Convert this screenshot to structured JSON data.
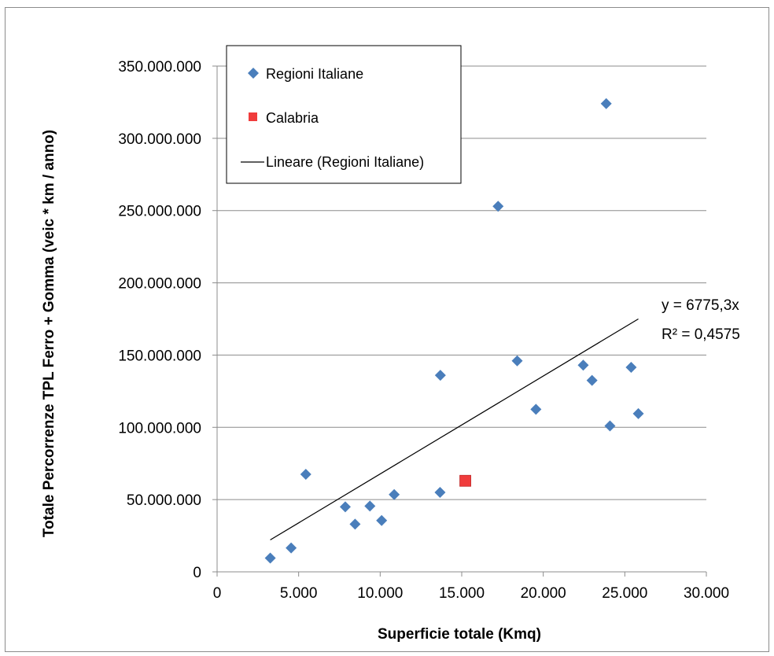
{
  "chart_data": {
    "type": "scatter",
    "title": "",
    "xlabel": "Superficie totale (Kmq)",
    "ylabel": "Totale Percorrenze TPL Ferro + Gomma  (veic * km / anno)",
    "xlim": [
      0,
      30000
    ],
    "ylim": [
      0,
      350000000
    ],
    "x_ticks": [
      0,
      5000,
      10000,
      15000,
      20000,
      25000,
      30000
    ],
    "x_tick_labels": [
      "0",
      "5.000",
      "10.000",
      "15.000",
      "20.000",
      "25.000",
      "30.000"
    ],
    "y_ticks": [
      0,
      50000000,
      100000000,
      150000000,
      200000000,
      250000000,
      300000000,
      350000000
    ],
    "y_tick_labels": [
      "0",
      "50.000.000",
      "100.000.000",
      "150.000.000",
      "200.000.000",
      "250.000.000",
      "300.000.000",
      "350.000.000"
    ],
    "grid": "horizontal",
    "legend_position": "top-left",
    "series": [
      {
        "name": "Regioni Italiane",
        "marker": "diamond",
        "color": "#4a7ebb",
        "points": [
          {
            "x": 3260,
            "y": 9500000
          },
          {
            "x": 4540,
            "y": 16500000
          },
          {
            "x": 5440,
            "y": 67500000
          },
          {
            "x": 7860,
            "y": 45000000
          },
          {
            "x": 8460,
            "y": 33000000
          },
          {
            "x": 9370,
            "y": 45500000
          },
          {
            "x": 10090,
            "y": 35500000
          },
          {
            "x": 10860,
            "y": 53500000
          },
          {
            "x": 13670,
            "y": 55000000
          },
          {
            "x": 13690,
            "y": 136000000
          },
          {
            "x": 17230,
            "y": 253000000
          },
          {
            "x": 18400,
            "y": 146000000
          },
          {
            "x": 19550,
            "y": 112500000
          },
          {
            "x": 22450,
            "y": 143000000
          },
          {
            "x": 22990,
            "y": 132500000
          },
          {
            "x": 23860,
            "y": 324000000
          },
          {
            "x": 24090,
            "y": 101000000
          },
          {
            "x": 25390,
            "y": 141500000
          },
          {
            "x": 25830,
            "y": 109500000
          }
        ]
      },
      {
        "name": "Calabria",
        "marker": "square",
        "color": "#f03c3c",
        "points": [
          {
            "x": 15220,
            "y": 63000000
          }
        ]
      }
    ],
    "trendline": {
      "name": "Lineare (Regioni Italiane)",
      "slope": 6775.3,
      "x_range": [
        3260,
        25830
      ],
      "color": "#000000",
      "equation": "y = 6775,3x",
      "r_squared": "R² = 0,4575"
    }
  }
}
